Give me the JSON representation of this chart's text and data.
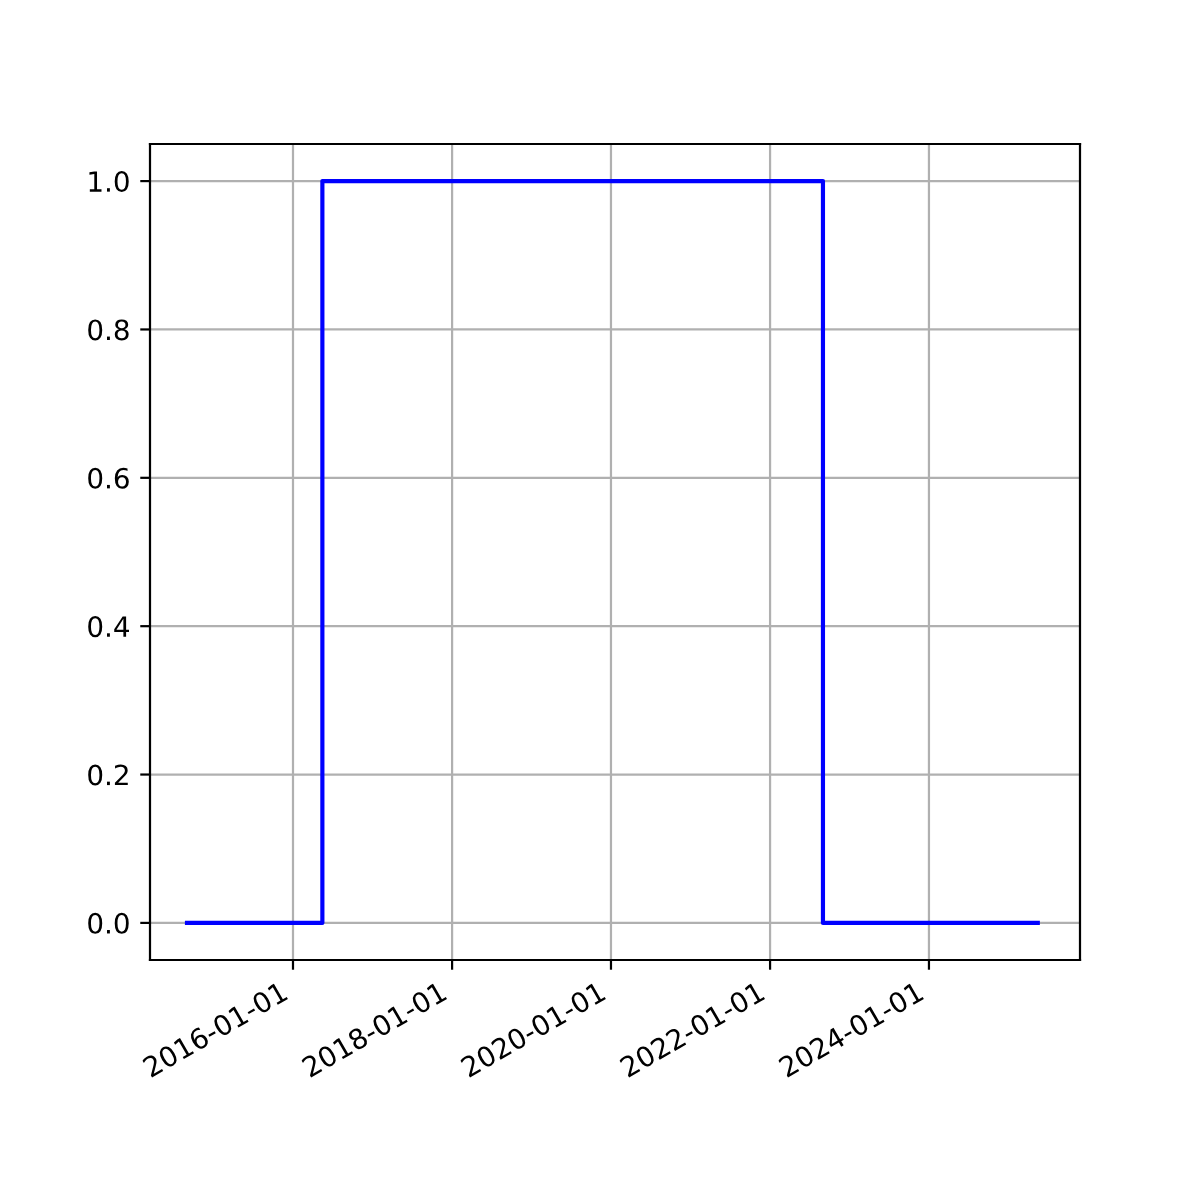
{
  "chart_data": {
    "type": "step",
    "x": [
      "2014-09-01",
      "2016-05-15",
      "2022-09-01",
      "2025-05-15"
    ],
    "series": [
      {
        "color": "#0000ff",
        "values": [
          0,
          1,
          0,
          0
        ]
      }
    ],
    "xlim": [
      "2014-03-15",
      "2025-11-25"
    ],
    "xticks": [
      {
        "value": "2016-01-01",
        "label": "2016-01-01"
      },
      {
        "value": "2018-01-01",
        "label": "2018-01-01"
      },
      {
        "value": "2020-01-01",
        "label": "2020-01-01"
      },
      {
        "value": "2022-01-01",
        "label": "2022-01-01"
      },
      {
        "value": "2024-01-01",
        "label": "2024-01-01"
      }
    ],
    "ylim": [
      -0.05,
      1.05
    ],
    "yticks": [
      {
        "value": 0,
        "label": "0.0"
      },
      {
        "value": 0.2,
        "label": "0.2"
      },
      {
        "value": 0.4,
        "label": "0.4"
      },
      {
        "value": 0.6,
        "label": "0.6"
      },
      {
        "value": 0.8,
        "label": "0.8"
      },
      {
        "value": 1,
        "label": "1.0"
      }
    ],
    "grid": true,
    "legend": false
  }
}
